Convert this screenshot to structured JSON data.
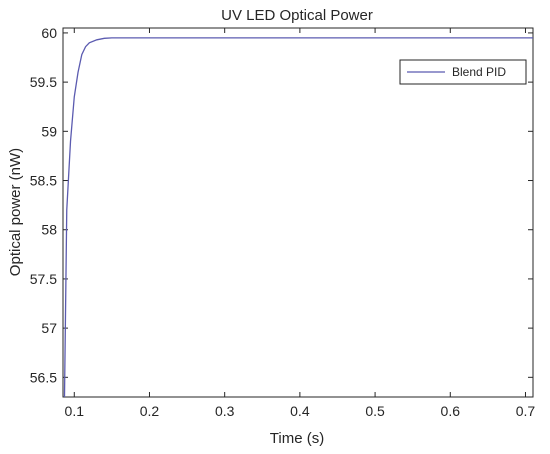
{
  "chart_data": {
    "type": "line",
    "title": "UV LED Optical Power",
    "xlabel": "Time (s)",
    "ylabel": "Optical power (nW)",
    "xlim": [
      0.085,
      0.71
    ],
    "ylim": [
      56.3,
      60.05
    ],
    "xticks": [
      0.1,
      0.2,
      0.3,
      0.4,
      0.5,
      0.6,
      0.7
    ],
    "xtick_labels": [
      "0.1",
      "0.2",
      "0.3",
      "0.4",
      "0.5",
      "0.6",
      "0.7"
    ],
    "yticks": [
      56.5,
      57,
      57.5,
      58,
      58.5,
      59,
      59.5,
      60
    ],
    "ytick_labels": [
      "56.5",
      "57",
      "57.5",
      "58",
      "58.5",
      "59",
      "59.5",
      "60"
    ],
    "grid": false,
    "legend": "top-right",
    "series": [
      {
        "name": "Blend PID",
        "color": "#5b5bb0",
        "x": [
          0.087,
          0.09,
          0.095,
          0.1,
          0.105,
          0.11,
          0.115,
          0.12,
          0.13,
          0.14,
          0.15,
          0.2,
          0.3,
          0.4,
          0.5,
          0.6,
          0.71
        ],
        "y": [
          56.3,
          58.2,
          58.9,
          59.35,
          59.6,
          59.78,
          59.86,
          59.9,
          59.93,
          59.945,
          59.95,
          59.95,
          59.95,
          59.95,
          59.95,
          59.95,
          59.95
        ]
      }
    ]
  }
}
